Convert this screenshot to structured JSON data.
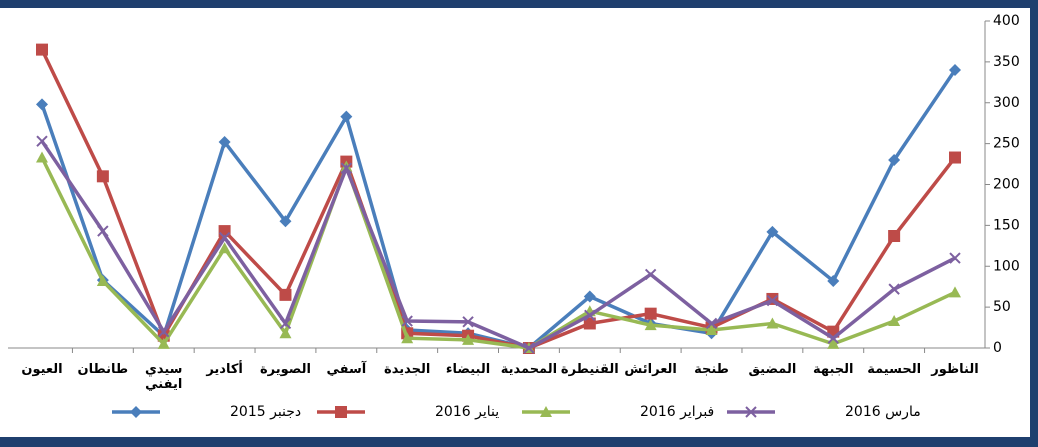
{
  "chart_data": {
    "type": "line",
    "categories": [
      "العيون",
      "طانطان",
      "سيدي ايفني",
      "أكادير",
      "الصويرة",
      "آسفي",
      "الجديدة",
      "البيضاء",
      "المحمدية",
      "القنيطرة",
      "العرائش",
      "طنجة",
      "المضيق",
      "الجبهة",
      "الحسيمة",
      "الناظور"
    ],
    "series": [
      {
        "name": "دجنبر 2015",
        "color": "#4a7ebb",
        "marker": "diamond",
        "values": [
          298,
          83,
          15,
          252,
          155,
          283,
          22,
          18,
          0,
          63,
          30,
          18,
          142,
          82,
          230,
          340
        ]
      },
      {
        "name": "يناير 2016",
        "color": "#be4b48",
        "marker": "square",
        "values": [
          365,
          210,
          15,
          143,
          65,
          228,
          18,
          15,
          0,
          30,
          42,
          25,
          60,
          20,
          137,
          233
        ]
      },
      {
        "name": "فبراير 2016",
        "color": "#98b954",
        "marker": "triangle",
        "values": [
          233,
          82,
          5,
          122,
          18,
          222,
          12,
          10,
          0,
          45,
          28,
          22,
          30,
          5,
          33,
          68
        ]
      },
      {
        "name": "مارس 2016",
        "color": "#7d60a0",
        "marker": "x",
        "values": [
          253,
          143,
          20,
          135,
          30,
          220,
          33,
          32,
          0,
          40,
          90,
          30,
          58,
          12,
          72,
          110
        ]
      }
    ],
    "ylim": [
      0,
      400
    ],
    "yticks": [
      0,
      50,
      100,
      150,
      200,
      250,
      300,
      350,
      400
    ],
    "legend": "bottom"
  }
}
